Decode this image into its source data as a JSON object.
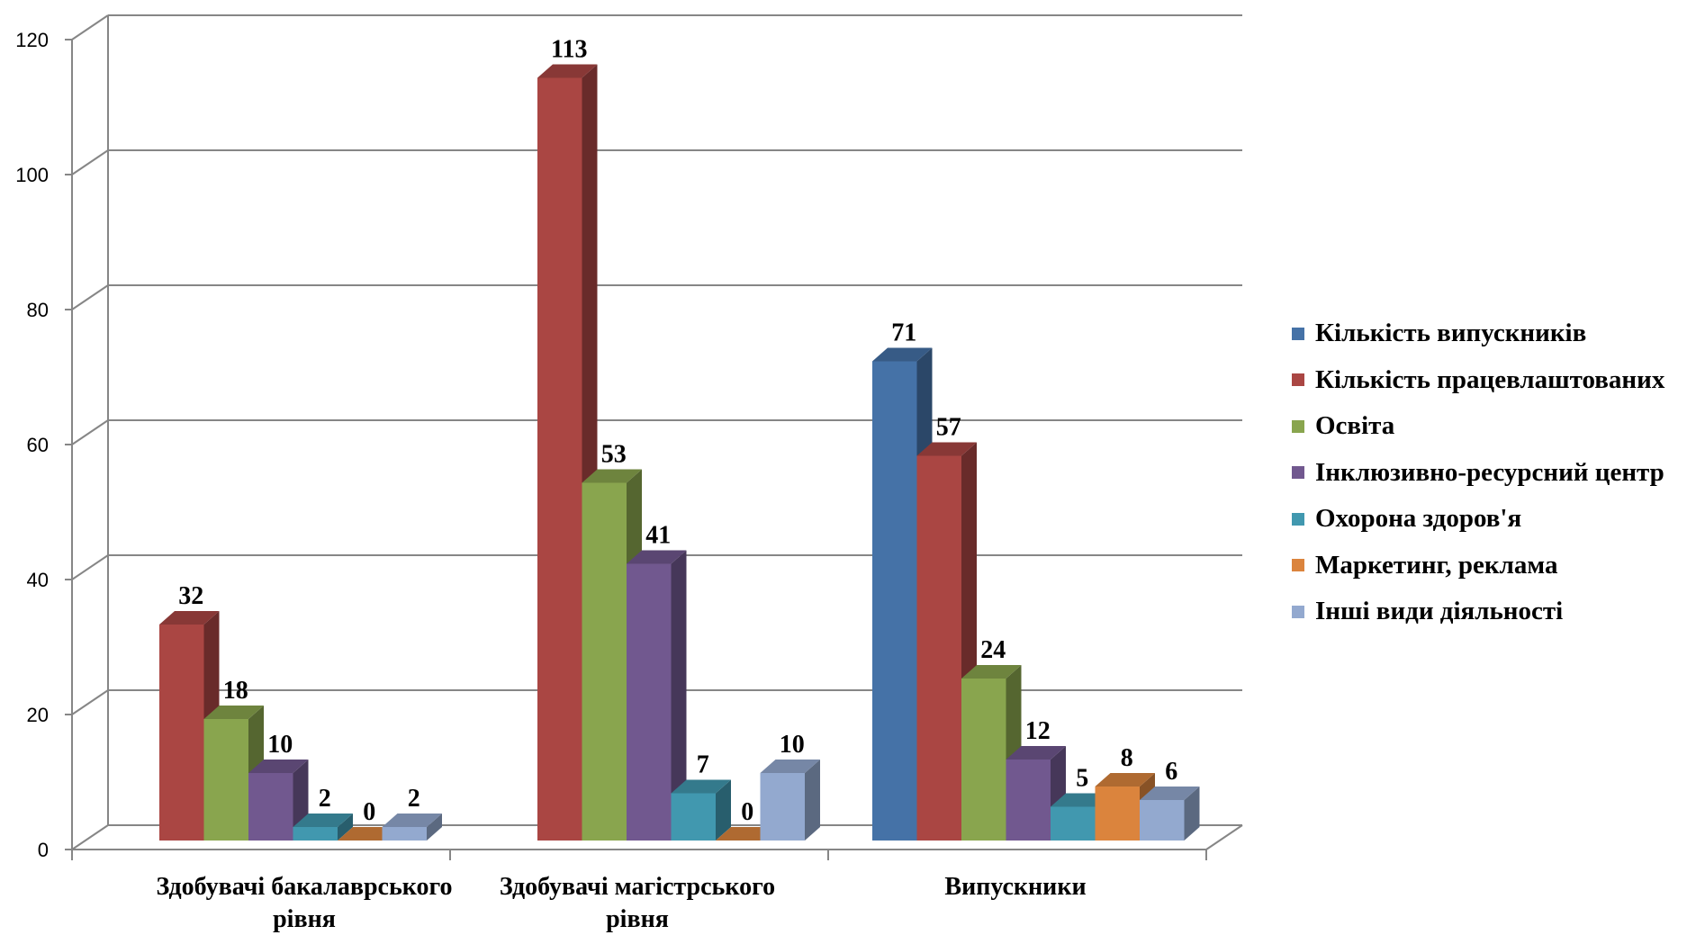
{
  "chart_data": {
    "type": "bar",
    "title": "",
    "xlabel": "",
    "ylabel": "",
    "ylim": [
      0,
      120
    ],
    "yticks": [
      "0",
      "20",
      "40",
      "60",
      "80",
      "100",
      "120"
    ],
    "grid": true,
    "legend_position": "right",
    "three_d": true,
    "categories": [
      [
        "Здобувачі бакалаврського",
        "рівня"
      ],
      [
        "Здобувачі магістрського",
        "рівня"
      ],
      [
        "Випускники"
      ]
    ],
    "series": [
      {
        "name": "Кількість випускників",
        "color": "#4572A7",
        "values": [
          null,
          null,
          71
        ]
      },
      {
        "name": "Кількість працевлаштованих",
        "color": "#AA4643",
        "values": [
          32,
          113,
          57
        ]
      },
      {
        "name": "Освіта",
        "color": "#89A54E",
        "values": [
          18,
          53,
          24
        ]
      },
      {
        "name": "Інклюзивно-ресурсний центр",
        "color": "#71588F",
        "values": [
          10,
          41,
          12
        ]
      },
      {
        "name": "Охорона здоров'я",
        "color": "#4198AF",
        "values": [
          2,
          7,
          5
        ]
      },
      {
        "name": "Маркетинг, реклама",
        "color": "#DB843D",
        "values": [
          0,
          0,
          8
        ]
      },
      {
        "name": "Інші види діяльності",
        "color": "#93A9CF",
        "values": [
          2,
          10,
          6
        ]
      }
    ]
  }
}
